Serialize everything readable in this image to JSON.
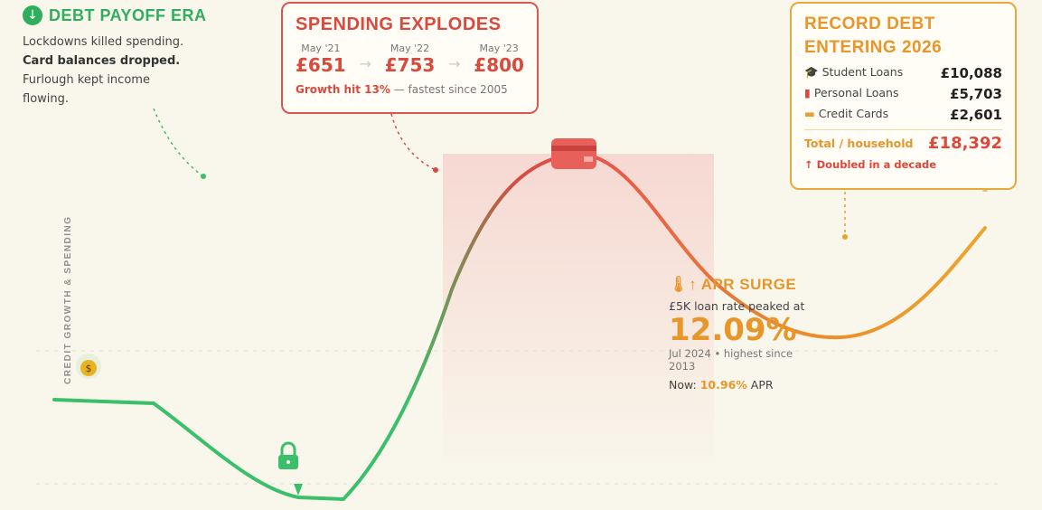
{
  "axis_label": "CREDIT GROWTH & SPENDING",
  "payoff": {
    "title": "DEBT PAYOFF ERA",
    "lines": [
      "Lockdowns killed spending.",
      "Card balances dropped.",
      "Furlough kept income",
      "flowing."
    ]
  },
  "spending": {
    "title": "SPENDING EXPLODES",
    "points": [
      {
        "date": "May '21",
        "amount": "£651"
      },
      {
        "date": "May '22",
        "amount": "£753"
      },
      {
        "date": "May '23",
        "amount": "£800"
      }
    ],
    "growth": "Growth hit 13%",
    "note": "— fastest since 2005"
  },
  "record": {
    "title_1": "RECORD DEBT",
    "title_2": "ENTERING 2026",
    "rows": [
      {
        "label": "Student Loans",
        "amount": "£10,088"
      },
      {
        "label": "Personal Loans",
        "amount": "£5,703"
      },
      {
        "label": "Credit Cards",
        "amount": "£2,601"
      }
    ],
    "total_label": "Total / household",
    "total": "£18,392",
    "note": "↑ Doubled in a decade"
  },
  "apr": {
    "title": "APR SURGE",
    "intro": "£5K loan rate peaked at",
    "rate": "12.09%",
    "date_1": "Jul 2024 • highest since",
    "date_2": "2013",
    "now_label": "Now:",
    "now_rate": "10.96%",
    "now_unit": "APR"
  }
}
